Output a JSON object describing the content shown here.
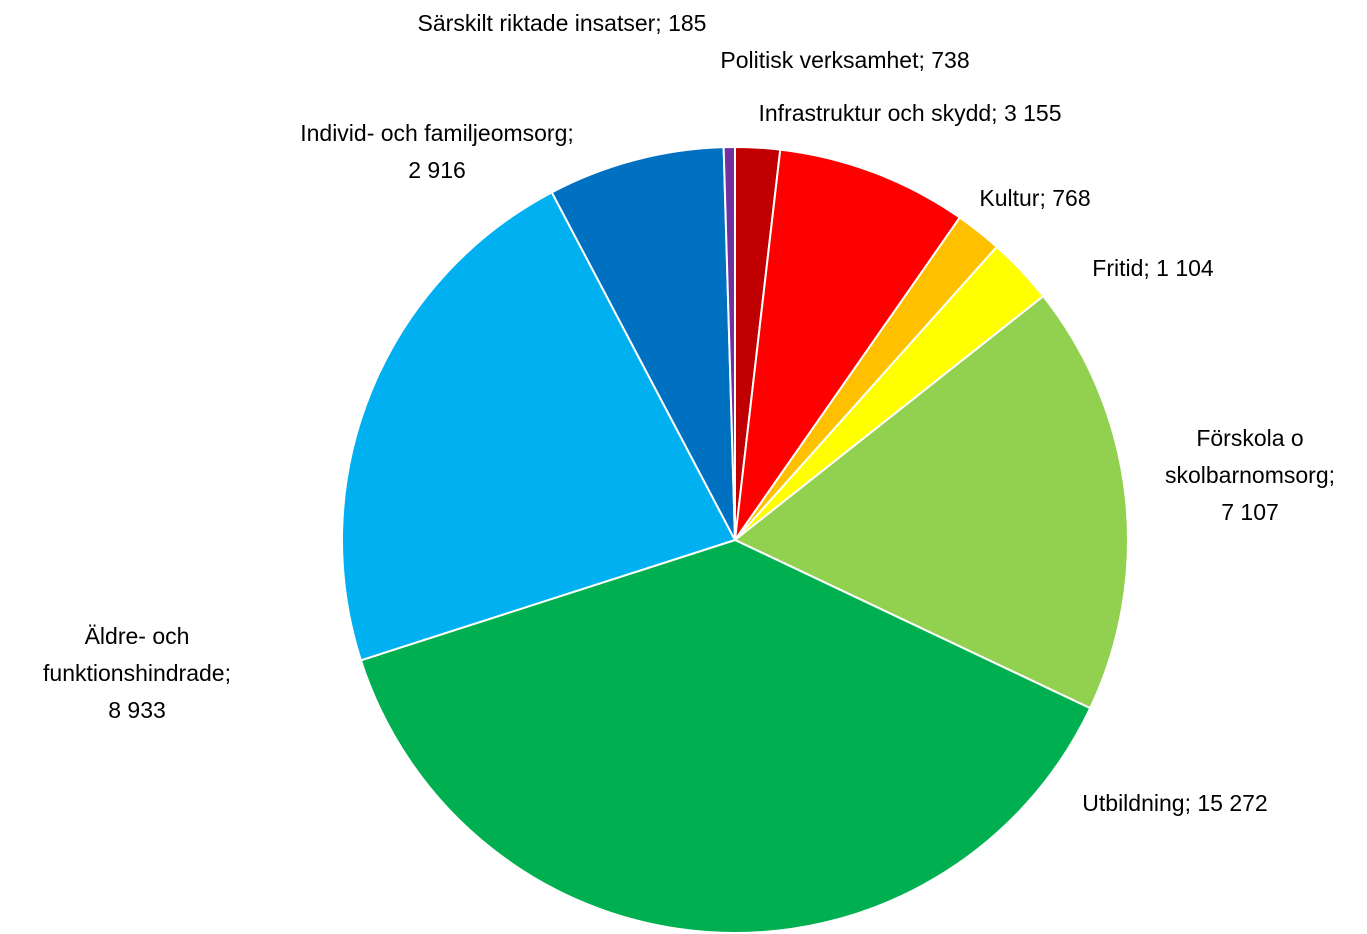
{
  "chart_data": {
    "type": "pie",
    "categories": [
      "Politisk verksamhet",
      "Infrastruktur och skydd",
      "Kultur",
      "Fritid",
      "Förskola o skolbarnomsorg",
      "Utbildning",
      "Äldre- och funktionshindrade",
      "Individ- och familjeomsorg",
      "Särskilt riktade insatser"
    ],
    "values": [
      738,
      3155,
      768,
      1104,
      7107,
      15272,
      8933,
      2916,
      185
    ],
    "value_labels": [
      "738",
      "3 155",
      "768",
      "1 104",
      "7 107",
      "15 272",
      "8 933",
      "2 916",
      "185"
    ],
    "label_separator": ";",
    "colors": [
      "#c00000",
      "#ff0000",
      "#ffc000",
      "#ffff00",
      "#92d050",
      "#00b050",
      "#00b0f0",
      "#0070c0",
      "#7030a0"
    ]
  }
}
